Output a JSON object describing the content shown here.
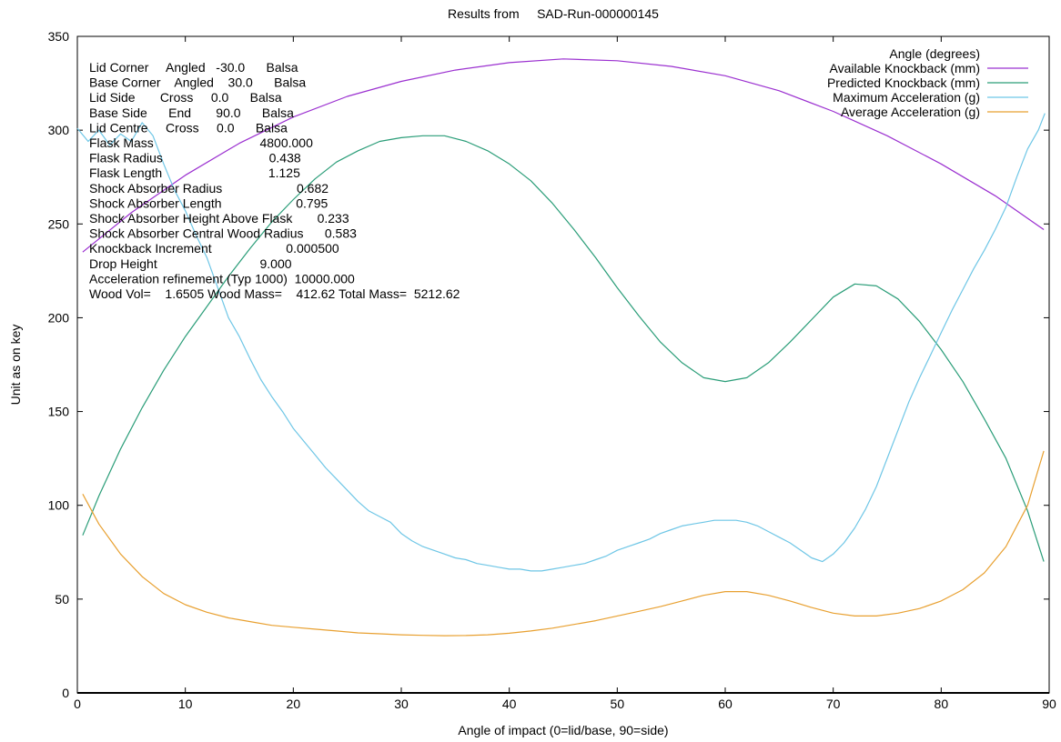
{
  "chart_data": {
    "type": "line",
    "title": "Results from     SAD-Run-000000145",
    "xlabel": "Angle of impact (0=lid/base, 90=side)",
    "ylabel": "Unit as on key",
    "xlim": [
      0,
      90
    ],
    "ylim": [
      0,
      350
    ],
    "xticks": [
      "0",
      "10",
      "20",
      "30",
      "40",
      "50",
      "60",
      "70",
      "80",
      "90"
    ],
    "yticks": [
      "0",
      "50",
      "100",
      "150",
      "200",
      "250",
      "300",
      "350"
    ],
    "grid": false,
    "legend_title": "Angle (degrees)",
    "legend_position": "top-right",
    "series": [
      {
        "name": "Available Knockback (mm)",
        "color": "#9b30d0",
        "points": [
          [
            0.5,
            235
          ],
          [
            5,
            256
          ],
          [
            10,
            276
          ],
          [
            15,
            293
          ],
          [
            20,
            307
          ],
          [
            25,
            318
          ],
          [
            30,
            326
          ],
          [
            35,
            332
          ],
          [
            40,
            336
          ],
          [
            45,
            338
          ],
          [
            50,
            337
          ],
          [
            55,
            334
          ],
          [
            60,
            329
          ],
          [
            65,
            321
          ],
          [
            70,
            310
          ],
          [
            75,
            297
          ],
          [
            80,
            282
          ],
          [
            85,
            265
          ],
          [
            89.5,
            247
          ]
        ]
      },
      {
        "name": "Predicted Knockback (mm)",
        "color": "#2a9d78",
        "points": [
          [
            0.5,
            84
          ],
          [
            2,
            105
          ],
          [
            4,
            130
          ],
          [
            6,
            152
          ],
          [
            8,
            172
          ],
          [
            10,
            190
          ],
          [
            12,
            206
          ],
          [
            14,
            222
          ],
          [
            16,
            237
          ],
          [
            18,
            251
          ],
          [
            20,
            263
          ],
          [
            22,
            274
          ],
          [
            24,
            283
          ],
          [
            26,
            289
          ],
          [
            28,
            294
          ],
          [
            30,
            296
          ],
          [
            32,
            297
          ],
          [
            34,
            297
          ],
          [
            36,
            294
          ],
          [
            38,
            289
          ],
          [
            40,
            282
          ],
          [
            42,
            273
          ],
          [
            44,
            261
          ],
          [
            46,
            247
          ],
          [
            48,
            232
          ],
          [
            50,
            216
          ],
          [
            52,
            201
          ],
          [
            54,
            187
          ],
          [
            56,
            176
          ],
          [
            58,
            168
          ],
          [
            60,
            166
          ],
          [
            62,
            168
          ],
          [
            64,
            176
          ],
          [
            66,
            187
          ],
          [
            68,
            199
          ],
          [
            70,
            211
          ],
          [
            72,
            218
          ],
          [
            74,
            217
          ],
          [
            76,
            210
          ],
          [
            78,
            198
          ],
          [
            80,
            183
          ],
          [
            82,
            166
          ],
          [
            84,
            146
          ],
          [
            86,
            125
          ],
          [
            88,
            97
          ],
          [
            89.5,
            70
          ]
        ]
      },
      {
        "name": "Maximum Acceleration (g)",
        "color": "#6ec6e6",
        "points": [
          [
            0,
            301
          ],
          [
            1,
            294
          ],
          [
            2,
            300
          ],
          [
            3,
            292
          ],
          [
            4,
            298
          ],
          [
            5,
            294
          ],
          [
            6,
            304
          ],
          [
            7,
            297
          ],
          [
            8,
            282
          ],
          [
            9,
            268
          ],
          [
            10,
            257
          ],
          [
            11,
            244
          ],
          [
            12,
            232
          ],
          [
            13,
            216
          ],
          [
            14,
            200
          ],
          [
            15,
            190
          ],
          [
            16,
            178
          ],
          [
            17,
            167
          ],
          [
            18,
            158
          ],
          [
            19,
            150
          ],
          [
            20,
            141
          ],
          [
            21,
            134
          ],
          [
            22,
            127
          ],
          [
            23,
            120
          ],
          [
            24,
            114
          ],
          [
            25,
            108
          ],
          [
            26,
            102
          ],
          [
            27,
            97
          ],
          [
            28,
            94
          ],
          [
            29,
            91
          ],
          [
            30,
            85
          ],
          [
            31,
            81
          ],
          [
            32,
            78
          ],
          [
            33,
            76
          ],
          [
            34,
            74
          ],
          [
            35,
            72
          ],
          [
            36,
            71
          ],
          [
            37,
            69
          ],
          [
            38,
            68
          ],
          [
            39,
            67
          ],
          [
            40,
            66
          ],
          [
            41,
            66
          ],
          [
            42,
            65
          ],
          [
            43,
            65
          ],
          [
            44,
            66
          ],
          [
            45,
            67
          ],
          [
            46,
            68
          ],
          [
            47,
            69
          ],
          [
            48,
            71
          ],
          [
            49,
            73
          ],
          [
            50,
            76
          ],
          [
            51,
            78
          ],
          [
            52,
            80
          ],
          [
            53,
            82
          ],
          [
            54,
            85
          ],
          [
            55,
            87
          ],
          [
            56,
            89
          ],
          [
            57,
            90
          ],
          [
            58,
            91
          ],
          [
            59,
            92
          ],
          [
            60,
            92
          ],
          [
            61,
            92
          ],
          [
            62,
            91
          ],
          [
            63,
            89
          ],
          [
            64,
            86
          ],
          [
            65,
            83
          ],
          [
            66,
            80
          ],
          [
            67,
            76
          ],
          [
            68,
            72
          ],
          [
            69,
            70
          ],
          [
            70,
            74
          ],
          [
            71,
            80
          ],
          [
            72,
            88
          ],
          [
            73,
            98
          ],
          [
            74,
            110
          ],
          [
            75,
            125
          ],
          [
            76,
            140
          ],
          [
            77,
            155
          ],
          [
            78,
            168
          ],
          [
            79,
            180
          ],
          [
            80,
            192
          ],
          [
            81,
            204
          ],
          [
            82,
            215
          ],
          [
            83,
            226
          ],
          [
            84,
            236
          ],
          [
            85,
            247
          ],
          [
            86,
            259
          ],
          [
            87,
            275
          ],
          [
            88,
            290
          ],
          [
            89,
            300
          ],
          [
            89.6,
            309
          ]
        ]
      },
      {
        "name": "Average Acceleration (g)",
        "color": "#e8a030",
        "points": [
          [
            0.5,
            106
          ],
          [
            2,
            90
          ],
          [
            4,
            74
          ],
          [
            6,
            62
          ],
          [
            8,
            53
          ],
          [
            10,
            47
          ],
          [
            12,
            43
          ],
          [
            14,
            40
          ],
          [
            16,
            38
          ],
          [
            18,
            36
          ],
          [
            20,
            35
          ],
          [
            22,
            34
          ],
          [
            24,
            33
          ],
          [
            26,
            32
          ],
          [
            28,
            31.5
          ],
          [
            30,
            31
          ],
          [
            32,
            30.7
          ],
          [
            34,
            30.5
          ],
          [
            36,
            30.6
          ],
          [
            38,
            31
          ],
          [
            40,
            31.8
          ],
          [
            42,
            33
          ],
          [
            44,
            34.5
          ],
          [
            46,
            36.5
          ],
          [
            48,
            38.5
          ],
          [
            50,
            41
          ],
          [
            52,
            43.5
          ],
          [
            54,
            46
          ],
          [
            56,
            49
          ],
          [
            58,
            52
          ],
          [
            60,
            54
          ],
          [
            62,
            54
          ],
          [
            64,
            52
          ],
          [
            66,
            49
          ],
          [
            68,
            45.5
          ],
          [
            70,
            42.5
          ],
          [
            72,
            41
          ],
          [
            74,
            41
          ],
          [
            76,
            42.5
          ],
          [
            78,
            45
          ],
          [
            80,
            49
          ],
          [
            82,
            55
          ],
          [
            84,
            64
          ],
          [
            86,
            78
          ],
          [
            88,
            100
          ],
          [
            89.5,
            129
          ]
        ]
      }
    ],
    "annotation_lines": [
      "Lid Corner     Angled   -30.0      Balsa",
      "Base Corner    Angled    30.0      Balsa",
      "Lid Side       Cross     0.0      Balsa",
      "Base Side      End       90.0      Balsa",
      "Lid Centre     Cross     0.0      Balsa",
      "Flask Mass                              4800.000",
      "Flask Radius                              0.438",
      "Flask Length                              1.125",
      "Shock Absorber Radius                     0.682",
      "Shock Absorber Length                     0.795",
      "Shock Absorber Height Above Flask       0.233",
      "Shock Absorber Central Wood Radius      0.583",
      "Knockback Increment                     0.000500",
      "Drop Height                             9.000",
      "Acceleration refinement (Typ 1000)  10000.000",
      "Wood Vol=    1.6505 Wood Mass=    412.62 Total Mass=  5212.62"
    ]
  }
}
